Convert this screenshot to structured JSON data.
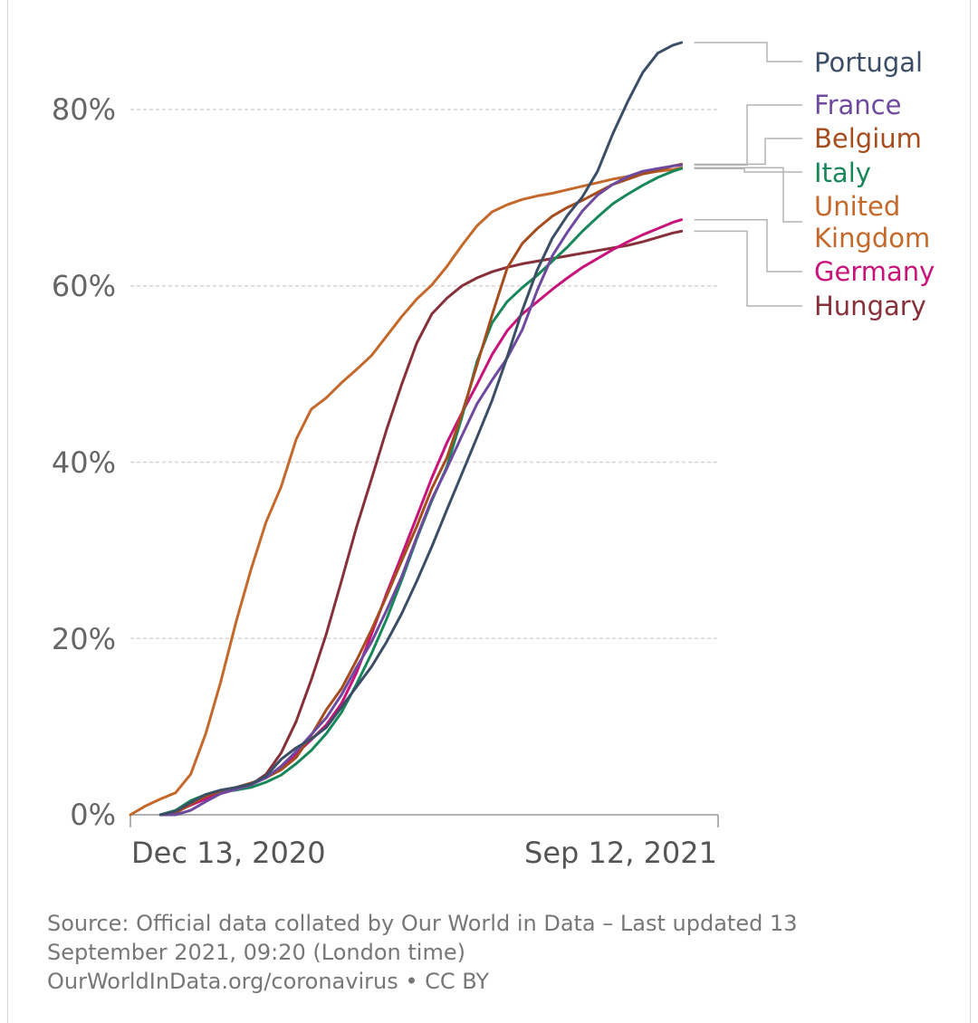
{
  "chart_data": {
    "type": "line",
    "title": "",
    "xlabel": "",
    "ylabel": "",
    "x_start": "2020-12-13",
    "x_end": "2021-09-12",
    "x_tick_labels": [
      "Dec 13, 2020",
      "Sep 12, 2021"
    ],
    "y_tick_labels": [
      "0%",
      "20%",
      "40%",
      "60%",
      "80%"
    ],
    "y_ticks": [
      0,
      20,
      40,
      60,
      80
    ],
    "ylim": [
      0,
      90
    ],
    "grid": "horizontal dashed",
    "legend": "right, line-end labels",
    "series": [
      {
        "name": "Portugal",
        "color": "#3c4e66",
        "points": [
          [
            "2020-12-27",
            0
          ],
          [
            "2021-01-03",
            0.4
          ],
          [
            "2021-01-10",
            1.4
          ],
          [
            "2021-01-17",
            2.3
          ],
          [
            "2021-01-24",
            2.8
          ],
          [
            "2021-01-31",
            3.1
          ],
          [
            "2021-02-07",
            3.5
          ],
          [
            "2021-02-14",
            4.4
          ],
          [
            "2021-02-21",
            6.3
          ],
          [
            "2021-02-28",
            7.6
          ],
          [
            "2021-03-07",
            8.6
          ],
          [
            "2021-03-14",
            9.9
          ],
          [
            "2021-03-21",
            12.2
          ],
          [
            "2021-03-28",
            14.5
          ],
          [
            "2021-04-04",
            16.8
          ],
          [
            "2021-04-11",
            19.6
          ],
          [
            "2021-04-18",
            22.8
          ],
          [
            "2021-04-25",
            26.5
          ],
          [
            "2021-05-02",
            30.4
          ],
          [
            "2021-05-09",
            34.6
          ],
          [
            "2021-05-16",
            38.7
          ],
          [
            "2021-05-23",
            42.8
          ],
          [
            "2021-05-30",
            47.0
          ],
          [
            "2021-06-06",
            51.9
          ],
          [
            "2021-06-13",
            57.2
          ],
          [
            "2021-06-20",
            61.8
          ],
          [
            "2021-06-27",
            65.4
          ],
          [
            "2021-07-04",
            68.0
          ],
          [
            "2021-07-11",
            70.1
          ],
          [
            "2021-07-18",
            73.0
          ],
          [
            "2021-07-25",
            77.2
          ],
          [
            "2021-08-01",
            80.9
          ],
          [
            "2021-08-08",
            84.2
          ],
          [
            "2021-08-15",
            86.4
          ],
          [
            "2021-08-22",
            87.3
          ],
          [
            "2021-08-26",
            87.6
          ]
        ]
      },
      {
        "name": "France",
        "color": "#6e4a9e",
        "points": [
          [
            "2020-12-27",
            0
          ],
          [
            "2021-01-03",
            0
          ],
          [
            "2021-01-10",
            0.5
          ],
          [
            "2021-01-17",
            1.5
          ],
          [
            "2021-01-24",
            2.4
          ],
          [
            "2021-01-31",
            2.9
          ],
          [
            "2021-02-07",
            3.4
          ],
          [
            "2021-02-14",
            4.2
          ],
          [
            "2021-02-21",
            5.5
          ],
          [
            "2021-02-28",
            7.2
          ],
          [
            "2021-03-07",
            9.1
          ],
          [
            "2021-03-14",
            11.0
          ],
          [
            "2021-03-21",
            13.6
          ],
          [
            "2021-03-28",
            16.7
          ],
          [
            "2021-04-04",
            19.6
          ],
          [
            "2021-04-11",
            23.2
          ],
          [
            "2021-04-18",
            27.0
          ],
          [
            "2021-04-25",
            31.5
          ],
          [
            "2021-05-02",
            35.8
          ],
          [
            "2021-05-09",
            39.3
          ],
          [
            "2021-05-16",
            43.0
          ],
          [
            "2021-05-23",
            46.6
          ],
          [
            "2021-05-30",
            49.3
          ],
          [
            "2021-06-06",
            51.8
          ],
          [
            "2021-06-13",
            55.0
          ],
          [
            "2021-06-20",
            59.5
          ],
          [
            "2021-06-27",
            63.4
          ],
          [
            "2021-07-04",
            66.1
          ],
          [
            "2021-07-11",
            68.5
          ],
          [
            "2021-07-18",
            70.3
          ],
          [
            "2021-07-25",
            71.5
          ],
          [
            "2021-08-01",
            72.4
          ],
          [
            "2021-08-08",
            73.0
          ],
          [
            "2021-08-15",
            73.3
          ],
          [
            "2021-08-22",
            73.6
          ],
          [
            "2021-08-26",
            73.7
          ]
        ]
      },
      {
        "name": "Belgium",
        "color": "#a64d1f",
        "points": [
          [
            "2020-12-27",
            0
          ],
          [
            "2021-01-03",
            0.2
          ],
          [
            "2021-01-10",
            1.2
          ],
          [
            "2021-01-17",
            2.1
          ],
          [
            "2021-01-24",
            2.7
          ],
          [
            "2021-01-31",
            3.1
          ],
          [
            "2021-02-07",
            3.6
          ],
          [
            "2021-02-14",
            4.2
          ],
          [
            "2021-02-21",
            5.1
          ],
          [
            "2021-02-28",
            6.5
          ],
          [
            "2021-03-07",
            9.0
          ],
          [
            "2021-03-14",
            11.9
          ],
          [
            "2021-03-21",
            14.3
          ],
          [
            "2021-03-28",
            17.5
          ],
          [
            "2021-04-04",
            21.0
          ],
          [
            "2021-04-11",
            24.8
          ],
          [
            "2021-04-18",
            28.8
          ],
          [
            "2021-04-25",
            32.7
          ],
          [
            "2021-05-02",
            37.0
          ],
          [
            "2021-05-09",
            40.5
          ],
          [
            "2021-05-16",
            45.5
          ],
          [
            "2021-05-23",
            51.0
          ],
          [
            "2021-05-30",
            56.7
          ],
          [
            "2021-06-06",
            62.0
          ],
          [
            "2021-06-13",
            64.8
          ],
          [
            "2021-06-20",
            66.5
          ],
          [
            "2021-06-27",
            67.9
          ],
          [
            "2021-07-04",
            68.9
          ],
          [
            "2021-07-11",
            69.7
          ],
          [
            "2021-07-18",
            70.6
          ],
          [
            "2021-07-25",
            71.5
          ],
          [
            "2021-08-01",
            72.1
          ],
          [
            "2021-08-08",
            72.7
          ],
          [
            "2021-08-15",
            73.1
          ],
          [
            "2021-08-22",
            73.6
          ],
          [
            "2021-08-26",
            73.8
          ]
        ]
      },
      {
        "name": "Italy",
        "color": "#18875a",
        "points": [
          [
            "2020-12-27",
            0
          ],
          [
            "2021-01-03",
            0.5
          ],
          [
            "2021-01-10",
            1.6
          ],
          [
            "2021-01-17",
            2.3
          ],
          [
            "2021-01-24",
            2.6
          ],
          [
            "2021-01-31",
            2.8
          ],
          [
            "2021-02-07",
            3.1
          ],
          [
            "2021-02-14",
            3.7
          ],
          [
            "2021-02-21",
            4.5
          ],
          [
            "2021-02-28",
            5.8
          ],
          [
            "2021-03-07",
            7.3
          ],
          [
            "2021-03-14",
            9.2
          ],
          [
            "2021-03-21",
            11.6
          ],
          [
            "2021-03-28",
            14.8
          ],
          [
            "2021-04-04",
            18.3
          ],
          [
            "2021-04-11",
            22.2
          ],
          [
            "2021-04-18",
            26.6
          ],
          [
            "2021-04-25",
            31.3
          ],
          [
            "2021-05-02",
            35.6
          ],
          [
            "2021-05-09",
            39.5
          ],
          [
            "2021-05-16",
            45.1
          ],
          [
            "2021-05-23",
            51.4
          ],
          [
            "2021-05-30",
            55.8
          ],
          [
            "2021-06-06",
            58.2
          ],
          [
            "2021-06-13",
            59.8
          ],
          [
            "2021-06-20",
            61.2
          ],
          [
            "2021-06-27",
            62.8
          ],
          [
            "2021-07-04",
            64.4
          ],
          [
            "2021-07-11",
            66.2
          ],
          [
            "2021-07-18",
            67.8
          ],
          [
            "2021-07-25",
            69.3
          ],
          [
            "2021-08-01",
            70.4
          ],
          [
            "2021-08-08",
            71.4
          ],
          [
            "2021-08-15",
            72.3
          ],
          [
            "2021-08-22",
            73.0
          ],
          [
            "2021-08-26",
            73.3
          ]
        ]
      },
      {
        "name": "United Kingdom",
        "color": "#c4692b",
        "points": [
          [
            "2020-12-13",
            0
          ],
          [
            "2020-12-20",
            1.0
          ],
          [
            "2020-12-27",
            1.8
          ],
          [
            "2021-01-03",
            2.5
          ],
          [
            "2021-01-10",
            4.6
          ],
          [
            "2021-01-17",
            9.2
          ],
          [
            "2021-01-24",
            15.1
          ],
          [
            "2021-01-31",
            21.8
          ],
          [
            "2021-02-07",
            27.8
          ],
          [
            "2021-02-14",
            33.2
          ],
          [
            "2021-02-21",
            37.2
          ],
          [
            "2021-02-28",
            42.6
          ],
          [
            "2021-03-07",
            46.0
          ],
          [
            "2021-03-14",
            47.3
          ],
          [
            "2021-03-21",
            49.0
          ],
          [
            "2021-03-28",
            50.5
          ],
          [
            "2021-04-04",
            52.1
          ],
          [
            "2021-04-11",
            54.3
          ],
          [
            "2021-04-18",
            56.5
          ],
          [
            "2021-04-25",
            58.5
          ],
          [
            "2021-05-02",
            60.1
          ],
          [
            "2021-05-09",
            62.2
          ],
          [
            "2021-05-16",
            64.6
          ],
          [
            "2021-05-23",
            66.8
          ],
          [
            "2021-05-30",
            68.4
          ],
          [
            "2021-06-06",
            69.2
          ],
          [
            "2021-06-13",
            69.8
          ],
          [
            "2021-06-20",
            70.2
          ],
          [
            "2021-06-27",
            70.5
          ],
          [
            "2021-07-04",
            70.9
          ],
          [
            "2021-07-11",
            71.3
          ],
          [
            "2021-07-18",
            71.7
          ],
          [
            "2021-07-25",
            72.1
          ],
          [
            "2021-08-01",
            72.4
          ],
          [
            "2021-08-08",
            72.7
          ],
          [
            "2021-08-15",
            73.0
          ],
          [
            "2021-08-22",
            73.2
          ],
          [
            "2021-08-26",
            73.4
          ]
        ]
      },
      {
        "name": "Germany",
        "color": "#c8137a",
        "points": [
          [
            "2020-12-27",
            0
          ],
          [
            "2021-01-03",
            0.3
          ],
          [
            "2021-01-10",
            1.1
          ],
          [
            "2021-01-17",
            1.8
          ],
          [
            "2021-01-24",
            2.4
          ],
          [
            "2021-01-31",
            2.9
          ],
          [
            "2021-02-07",
            3.5
          ],
          [
            "2021-02-14",
            4.2
          ],
          [
            "2021-02-21",
            5.4
          ],
          [
            "2021-02-28",
            6.9
          ],
          [
            "2021-03-07",
            8.5
          ],
          [
            "2021-03-14",
            10.2
          ],
          [
            "2021-03-21",
            12.6
          ],
          [
            "2021-03-28",
            16.1
          ],
          [
            "2021-04-04",
            20.5
          ],
          [
            "2021-04-11",
            25.1
          ],
          [
            "2021-04-18",
            29.4
          ],
          [
            "2021-04-25",
            33.8
          ],
          [
            "2021-05-02",
            38.2
          ],
          [
            "2021-05-09",
            42.2
          ],
          [
            "2021-05-16",
            45.6
          ],
          [
            "2021-05-23",
            48.8
          ],
          [
            "2021-05-30",
            52.2
          ],
          [
            "2021-06-06",
            54.9
          ],
          [
            "2021-06-13",
            56.8
          ],
          [
            "2021-06-20",
            58.2
          ],
          [
            "2021-06-27",
            59.6
          ],
          [
            "2021-07-04",
            60.9
          ],
          [
            "2021-07-11",
            62.1
          ],
          [
            "2021-07-18",
            63.1
          ],
          [
            "2021-07-25",
            64.1
          ],
          [
            "2021-08-01",
            65.0
          ],
          [
            "2021-08-08",
            65.8
          ],
          [
            "2021-08-15",
            66.5
          ],
          [
            "2021-08-22",
            67.2
          ],
          [
            "2021-08-26",
            67.5
          ]
        ]
      },
      {
        "name": "Hungary",
        "color": "#883039",
        "points": [
          [
            "2020-12-27",
            0
          ],
          [
            "2021-01-03",
            0.3
          ],
          [
            "2021-01-10",
            1.2
          ],
          [
            "2021-01-17",
            2.0
          ],
          [
            "2021-01-24",
            2.5
          ],
          [
            "2021-01-31",
            2.9
          ],
          [
            "2021-02-07",
            3.4
          ],
          [
            "2021-02-14",
            4.6
          ],
          [
            "2021-02-21",
            7.0
          ],
          [
            "2021-02-28",
            10.6
          ],
          [
            "2021-03-07",
            15.3
          ],
          [
            "2021-03-14",
            20.5
          ],
          [
            "2021-03-21",
            26.5
          ],
          [
            "2021-03-28",
            32.6
          ],
          [
            "2021-04-04",
            38.1
          ],
          [
            "2021-04-11",
            43.7
          ],
          [
            "2021-04-18",
            48.8
          ],
          [
            "2021-04-25",
            53.5
          ],
          [
            "2021-05-02",
            56.8
          ],
          [
            "2021-05-09",
            58.6
          ],
          [
            "2021-05-16",
            60.0
          ],
          [
            "2021-05-23",
            60.9
          ],
          [
            "2021-05-30",
            61.6
          ],
          [
            "2021-06-06",
            62.1
          ],
          [
            "2021-06-13",
            62.5
          ],
          [
            "2021-06-20",
            62.8
          ],
          [
            "2021-06-27",
            63.1
          ],
          [
            "2021-07-04",
            63.4
          ],
          [
            "2021-07-11",
            63.7
          ],
          [
            "2021-07-18",
            64.0
          ],
          [
            "2021-07-25",
            64.3
          ],
          [
            "2021-08-01",
            64.6
          ],
          [
            "2021-08-08",
            65.0
          ],
          [
            "2021-08-15",
            65.5
          ],
          [
            "2021-08-22",
            66.0
          ],
          [
            "2021-08-26",
            66.2
          ]
        ]
      }
    ]
  },
  "legend_labels": {
    "portugal": "Portugal",
    "france": "France",
    "belgium": "Belgium",
    "italy": "Italy",
    "uk_line1": "United",
    "uk_line2": "Kingdom",
    "germany": "Germany",
    "hungary": "Hungary"
  },
  "source": {
    "line1": "Source: Official data collated by Our World in Data – Last updated 13",
    "line2": "September 2021, 09:20 (London time)",
    "line3": "OurWorldInData.org/coronavirus • CC BY"
  }
}
